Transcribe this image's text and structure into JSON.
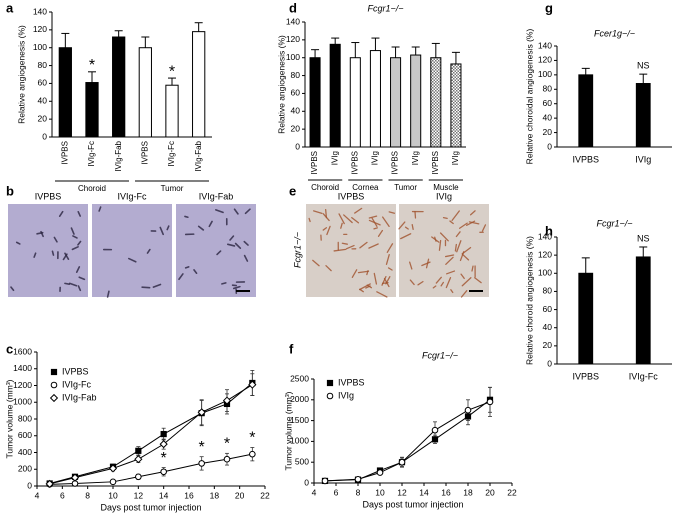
{
  "chart_data": [
    {
      "panel": "a",
      "type": "bar",
      "ylabel": "Relative angiogenesis (%)",
      "categories": [
        "IVPBS",
        "IVIg-Fc",
        "IVIg-Fab",
        "IVPBS",
        "IVIg-Fc",
        "IVIg-Fab"
      ],
      "values": [
        100,
        61,
        112,
        100,
        58,
        118
      ],
      "errors": [
        16,
        12,
        7,
        12,
        8,
        10
      ],
      "colors": [
        "#000000",
        "#000000",
        "#000000",
        "#ffffff",
        "#ffffff",
        "#ffffff"
      ],
      "groups": [
        "Choroid",
        "Choroid",
        "Choroid",
        "Tumor",
        "Tumor",
        "Tumor"
      ],
      "value_annotations": [
        null,
        "*",
        null,
        null,
        "*",
        null
      ],
      "ylim": [
        0,
        140
      ],
      "yticks": [
        0,
        20,
        40,
        60,
        80,
        100,
        120,
        140
      ]
    },
    {
      "panel": "d",
      "type": "bar",
      "title": "Fcgr1−/−",
      "ylabel": "Relative angiogenesis (%)",
      "categories": [
        "IVPBS",
        "IVIg",
        "IVPBS",
        "IVIg",
        "IVPBS",
        "IVIg",
        "IVPBS",
        "IVIg"
      ],
      "values": [
        100,
        115,
        100,
        108,
        100,
        103,
        100,
        93
      ],
      "errors": [
        9,
        7,
        17,
        14,
        12,
        9,
        16,
        13
      ],
      "colors": [
        "#000000",
        "#000000",
        "#ffffff",
        "#ffffff",
        "#c8c8c8",
        "#c8c8c8",
        "#ffffff",
        "#ffffff"
      ],
      "hatch": [
        false,
        false,
        false,
        false,
        false,
        false,
        true,
        true
      ],
      "groups": [
        "Choroid",
        "Choroid",
        "Cornea",
        "Cornea",
        "Tumor",
        "Tumor",
        "Muscle",
        "Muscle"
      ],
      "ylim": [
        0,
        140
      ],
      "yticks": [
        0,
        20,
        40,
        60,
        80,
        100,
        120,
        140
      ]
    },
    {
      "panel": "g",
      "type": "bar",
      "title": "Fcer1g−/−",
      "ylabel": "Relative choroidal angiogenesis (%)",
      "categories": [
        "IVPBS",
        "IVIg"
      ],
      "values": [
        100,
        88
      ],
      "errors": [
        9,
        13
      ],
      "colors": [
        "#000000",
        "#000000"
      ],
      "value_annotations": [
        null,
        "NS"
      ],
      "ylim": [
        0,
        140
      ],
      "yticks": [
        0,
        20,
        40,
        60,
        80,
        100,
        120,
        140
      ]
    },
    {
      "panel": "h",
      "type": "bar",
      "title": "Fcgr1−/−",
      "ylabel": "Relative choroid angiogenesis (%)",
      "categories": [
        "IVPBS",
        "IVIg-Fc"
      ],
      "values": [
        100,
        118
      ],
      "errors": [
        17,
        11
      ],
      "colors": [
        "#000000",
        "#000000"
      ],
      "value_annotations": [
        null,
        "NS"
      ],
      "ylim": [
        0,
        140
      ],
      "yticks": [
        0,
        20,
        40,
        60,
        80,
        100,
        120,
        140
      ]
    },
    {
      "panel": "c",
      "type": "line",
      "xlabel": "Days post tumor injection",
      "ylabel": "Tumor volume (mm³)",
      "legend": "upper left",
      "x": [
        5,
        7,
        10,
        12,
        14,
        17,
        19,
        21
      ],
      "series": [
        {
          "name": "IVPBS",
          "marker": "square",
          "color": "#000000",
          "fill": "#000000",
          "values": [
            30,
            110,
            230,
            420,
            620,
            870,
            980,
            1230
          ],
          "errors": [
            10,
            20,
            30,
            50,
            70,
            150,
            120,
            150
          ]
        },
        {
          "name": "IVIg-Fc",
          "marker": "circle",
          "color": "#000000",
          "fill": "#ffffff",
          "values": [
            20,
            30,
            50,
            110,
            170,
            270,
            320,
            380
          ],
          "errors": [
            5,
            10,
            20,
            30,
            50,
            80,
            70,
            80
          ],
          "value_annotations": [
            null,
            null,
            null,
            null,
            "*",
            "*",
            "*",
            "*"
          ]
        },
        {
          "name": "IVIg-Fab",
          "marker": "diamond",
          "color": "#000000",
          "fill": "#ffffff",
          "values": [
            25,
            100,
            210,
            320,
            500,
            880,
            1020,
            1210
          ],
          "errors": [
            10,
            20,
            30,
            40,
            60,
            150,
            130,
            130
          ]
        }
      ],
      "xlim": [
        4,
        22
      ],
      "xticks": [
        4,
        6,
        8,
        10,
        12,
        14,
        16,
        18,
        20,
        22
      ],
      "ylim": [
        0,
        1600
      ],
      "yticks": [
        0,
        200,
        400,
        600,
        800,
        1000,
        1200,
        1400,
        1600
      ]
    },
    {
      "panel": "f",
      "type": "line",
      "title": "Fcgr1−/−",
      "xlabel": "Days post tumor injection",
      "ylabel": "Tumor volume (mm³)",
      "legend": "upper left",
      "x": [
        5,
        8,
        10,
        12,
        15,
        18,
        20
      ],
      "series": [
        {
          "name": "IVPBS",
          "marker": "square",
          "color": "#000000",
          "fill": "#000000",
          "values": [
            50,
            80,
            300,
            500,
            1050,
            1600,
            2000
          ],
          "errors": [
            10,
            20,
            60,
            100,
            100,
            200,
            300
          ]
        },
        {
          "name": "IVIg",
          "marker": "circle",
          "color": "#000000",
          "fill": "#ffffff",
          "values": [
            50,
            90,
            250,
            500,
            1270,
            1750,
            1950
          ],
          "errors": [
            10,
            20,
            50,
            120,
            200,
            250,
            350
          ]
        }
      ],
      "xlim": [
        4,
        22
      ],
      "xticks": [
        4,
        6,
        8,
        10,
        12,
        14,
        16,
        18,
        20,
        22
      ],
      "ylim": [
        0,
        2500
      ],
      "yticks": [
        0,
        500,
        1000,
        1500,
        2000,
        2500
      ]
    }
  ],
  "images": [
    {
      "panel": "b",
      "labels": [
        "IVPBS",
        "IVIg-Fc",
        "IVIg-Fab"
      ]
    },
    {
      "panel": "e",
      "labels": [
        "IVPBS",
        "IVIg"
      ],
      "side_label": "Fcgr1−/−"
    }
  ]
}
